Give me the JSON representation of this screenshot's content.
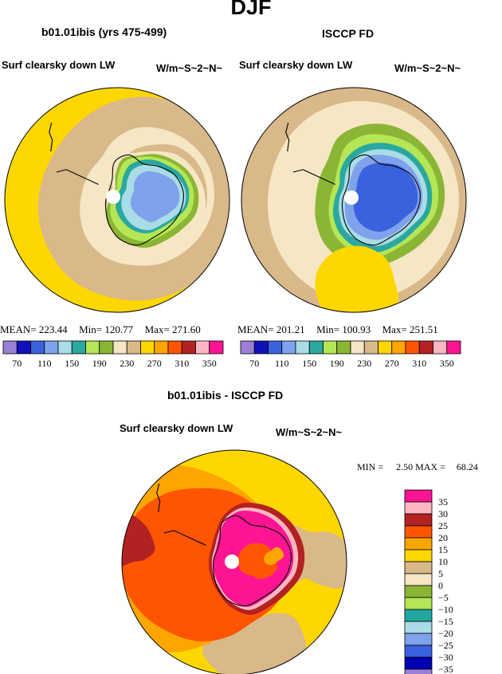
{
  "season": "DJF",
  "panels": [
    {
      "id": "left",
      "title": "b01.01ibis (yrs 475-499)",
      "variable": "Surf clearsky down LW",
      "units": "W/m~S~2~N~",
      "stats": {
        "mean_label": "MEAN=",
        "mean": "223.44",
        "min_label": "Min=",
        "min": "120.77",
        "max_label": "Max=",
        "max": "271.60"
      }
    },
    {
      "id": "right",
      "title": "ISCCP FD",
      "variable": "Surf clearsky down LW",
      "units": "W/m~S~2~N~",
      "stats": {
        "mean_label": "MEAN=",
        "mean": "201.21",
        "min_label": "Min=",
        "min": "100.93",
        "max_label": "Max=",
        "max": "251.51"
      }
    }
  ],
  "diff_panel": {
    "title": "b01.01ibis - ISCCP FD",
    "variable": "Surf clearsky down LW",
    "units": "W/m~S~2~N~",
    "min_label": "MIN =",
    "min": "2.50",
    "max_label": "MAX =",
    "max": "68.24"
  },
  "colors": {
    "abs_scale": [
      "#9b7fd6",
      "#1010b8",
      "#3a62de",
      "#7fa2ec",
      "#a9dce6",
      "#2aa8a0",
      "#b5e655",
      "#8bb534",
      "#f5e6c4",
      "#d9b88a",
      "#ffd700",
      "#ffa500",
      "#ff5500",
      "#b22222",
      "#ffb6c1",
      "#ff1493"
    ],
    "diff_scale": [
      "#9b7fd6",
      "#0000b0",
      "#3a62de",
      "#7fa2ec",
      "#a9dce6",
      "#20a8a0",
      "#b5e655",
      "#8bb534",
      "#f5e6c4",
      "#d9b88a",
      "#ffd700",
      "#ffa500",
      "#ff5500",
      "#b22222",
      "#ffb6c1",
      "#ff1493"
    ],
    "continent_fill": "#ffffff",
    "coast": "#000000"
  },
  "chart_data": [
    {
      "type": "heatmap",
      "projection": "south polar stereographic",
      "title": "b01.01ibis (yrs 475-499)",
      "variable": "Surf clearsky down LW",
      "units": "W/m~S~2~N~",
      "mean": 223.44,
      "min": 120.77,
      "max": 271.6,
      "levels": [
        70,
        90,
        110,
        130,
        150,
        170,
        190,
        210,
        230,
        250,
        270,
        290,
        310,
        330,
        350
      ],
      "tick_labels": [
        "70",
        "110",
        "150",
        "190",
        "230",
        "270",
        "310",
        "350"
      ],
      "region_values_rings": [
        90,
        130,
        150,
        170,
        190,
        200,
        230,
        250,
        280
      ]
    },
    {
      "type": "heatmap",
      "projection": "south polar stereographic",
      "title": "ISCCP FD",
      "variable": "Surf clearsky down LW",
      "units": "W/m~S~2~N~",
      "mean": 201.21,
      "min": 100.93,
      "max": 251.51,
      "levels": [
        70,
        90,
        110,
        130,
        150,
        170,
        190,
        210,
        230,
        250,
        270,
        290,
        310,
        330,
        350
      ],
      "tick_labels": [
        "70",
        "110",
        "150",
        "190",
        "230",
        "270",
        "310",
        "350"
      ],
      "region_values_rings": [
        110,
        130,
        150,
        170,
        190,
        210,
        230,
        260
      ]
    },
    {
      "type": "heatmap",
      "projection": "south polar stereographic",
      "title": "b01.01ibis - ISCCP FD",
      "variable": "Surf clearsky down LW",
      "units": "W/m~S~2~N~",
      "min": 2.5,
      "max": 68.24,
      "levels": [
        -35,
        -30,
        -25,
        -20,
        -15,
        -10,
        -5,
        0,
        5,
        10,
        15,
        20,
        25,
        30,
        35
      ],
      "tick_labels": [
        "35",
        "30",
        "25",
        "20",
        "15",
        "10",
        "5",
        "0",
        "−5",
        "−10",
        "−15",
        "−20",
        "−25",
        "−30",
        "−35"
      ]
    }
  ]
}
